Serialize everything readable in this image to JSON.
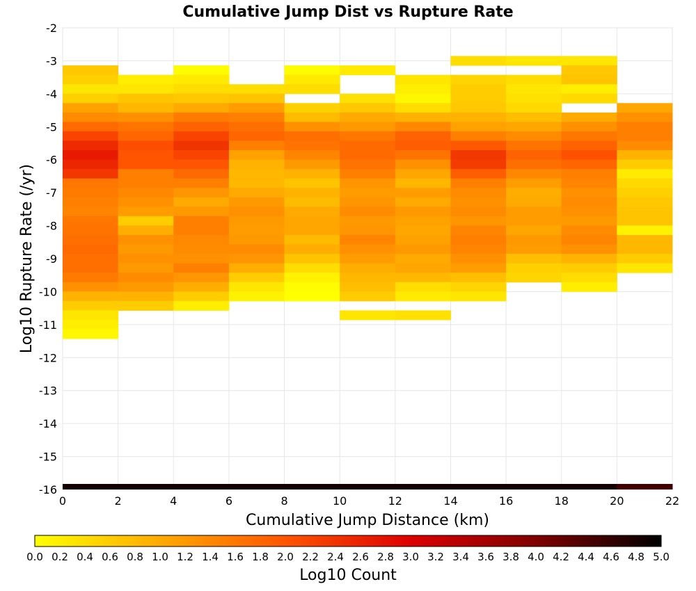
{
  "chart_data": {
    "type": "heatmap",
    "title": "Cumulative Jump Dist vs Rupture Rate",
    "xlabel": "Cumulative Jump Distance (km)",
    "ylabel": "Log10 Rupture Rate (/yr)",
    "xlim": [
      0,
      22
    ],
    "ylim": [
      -16,
      -2
    ],
    "x_ticks": [
      "0",
      "2",
      "4",
      "6",
      "8",
      "10",
      "12",
      "14",
      "16",
      "18",
      "20",
      "22"
    ],
    "y_ticks": [
      "-2",
      "-3",
      "-4",
      "-5",
      "-6",
      "-7",
      "-8",
      "-9",
      "-10",
      "-11",
      "-12",
      "-13",
      "-14",
      "-15",
      "-16"
    ],
    "x_bin_width": 2,
    "y_bin_height": 0.2857,
    "y_bin_edges_top": -3.14,
    "colorbar": {
      "label": "Log10 Count",
      "range": [
        0,
        5
      ],
      "ticks": [
        "0.0",
        "0.2",
        "0.4",
        "0.6",
        "0.8",
        "1.0",
        "1.2",
        "1.4",
        "1.6",
        "1.8",
        "2.0",
        "2.2",
        "2.4",
        "2.6",
        "2.8",
        "3.0",
        "3.2",
        "3.4",
        "3.6",
        "3.8",
        "4.0",
        "4.2",
        "4.4",
        "4.6",
        "4.8",
        "5.0"
      ],
      "colors": [
        "#ffff00",
        "#ffaa00",
        "#ff5500",
        "#dd0000",
        "#800000",
        "#000000"
      ]
    },
    "columns": [
      {
        "x": 0,
        "first_bin": 0,
        "values": [
          0.65,
          0.55,
          0.3,
          0.55,
          1.1,
          1.35,
          1.75,
          2.2,
          2.5,
          2.7,
          2.55,
          2.35,
          1.6,
          1.55,
          1.5,
          1.45,
          1.6,
          1.65,
          1.7,
          1.75,
          1.7,
          1.7,
          1.55,
          1.3,
          0.9,
          0.6,
          0.3,
          0.2,
          0.1
        ]
      },
      {
        "x": 2,
        "first_bin": 1,
        "values": [
          0.2,
          0.3,
          0.7,
          0.85,
          1.3,
          1.65,
          1.8,
          2.1,
          2.0,
          2.0,
          1.5,
          1.5,
          1.4,
          1.3,
          1.15,
          0.6,
          0.95,
          1.3,
          1.2,
          1.3,
          1.2,
          1.35,
          1.2,
          0.9,
          0.6
        ]
      },
      {
        "x": 4,
        "first_bin": 0,
        "values": [
          0.05,
          0.25,
          0.4,
          0.65,
          1.0,
          1.55,
          1.85,
          2.2,
          2.4,
          2.2,
          2.0,
          1.75,
          1.5,
          1.25,
          1.0,
          1.2,
          1.5,
          1.5,
          1.4,
          1.35,
          1.3,
          1.5,
          1.25,
          0.95,
          0.6,
          0.2
        ]
      },
      {
        "x": 6,
        "first_bin": 2,
        "values": [
          0.4,
          0.7,
          1.15,
          1.5,
          1.7,
          1.8,
          1.5,
          1.1,
          0.9,
          0.85,
          0.85,
          1.0,
          1.2,
          1.3,
          1.2,
          1.15,
          1.2,
          1.35,
          1.25,
          0.95,
          0.6,
          0.3,
          0.15
        ]
      },
      {
        "x": 8,
        "first_bin": 0,
        "values": [
          0.05,
          0.25,
          0.4,
          null,
          0.55,
          0.8,
          1.3,
          1.7,
          1.65,
          1.45,
          1.2,
          0.9,
          0.7,
          0.9,
          0.8,
          1.0,
          1.05,
          1.05,
          0.8,
          0.95,
          0.7,
          0.4,
          0.15,
          0.05,
          0.0
        ]
      },
      {
        "x": 10,
        "first_bin": 0,
        "values": [
          0.25,
          null,
          null,
          0.35,
          0.65,
          1.0,
          1.2,
          1.6,
          1.75,
          1.75,
          1.65,
          1.5,
          1.25,
          1.15,
          1.25,
          1.35,
          1.2,
          1.25,
          1.45,
          1.3,
          1.15,
          0.95,
          0.85,
          0.75,
          0.6,
          null,
          0.3
        ]
      },
      {
        "x": 12,
        "first_bin": 1,
        "values": [
          0.3,
          0.2,
          0.1,
          0.4,
          0.9,
          1.4,
          1.85,
          1.9,
          1.65,
          1.3,
          1.05,
          0.85,
          1.15,
          1.0,
          1.2,
          1.1,
          1.05,
          1.1,
          1.2,
          1.0,
          1.05,
          0.85,
          0.4,
          0.25,
          null,
          0.35
        ]
      },
      {
        "x": 14,
        "first_bin": -1,
        "values": [
          0.4,
          null,
          0.5,
          0.6,
          0.6,
          0.65,
          0.9,
          1.1,
          1.5,
          1.95,
          2.35,
          2.3,
          1.9,
          1.5,
          1.35,
          1.3,
          1.35,
          1.25,
          1.45,
          1.5,
          1.45,
          1.3,
          1.15,
          0.75,
          0.5,
          0.3
        ]
      },
      {
        "x": 16,
        "first_bin": -1,
        "values": [
          0.3,
          null,
          0.4,
          0.3,
          0.35,
          0.45,
          0.75,
          1.05,
          1.35,
          1.65,
          1.85,
          1.7,
          1.4,
          1.15,
          0.95,
          1.0,
          1.15,
          1.15,
          1.05,
          1.2,
          1.15,
          0.75,
          0.55,
          0.5
        ]
      },
      {
        "x": 18,
        "first_bin": -1,
        "values": [
          0.3,
          0.65,
          0.7,
          0.2,
          0.45,
          null,
          1.0,
          1.3,
          1.6,
          1.85,
          2.05,
          1.8,
          1.5,
          1.45,
          1.3,
          1.35,
          1.3,
          1.2,
          1.35,
          1.45,
          1.3,
          0.9,
          0.6,
          0.4,
          0.2
        ]
      },
      {
        "x": 20,
        "first_bin": 4,
        "values": [
          1.05,
          1.3,
          1.5,
          1.5,
          1.35,
          0.9,
          0.6,
          0.25,
          0.45,
          0.55,
          0.65,
          0.7,
          0.7,
          0.15,
          0.85,
          0.85,
          0.6,
          0.3
        ]
      }
    ],
    "bottom_row": {
      "y": -16,
      "value": 4.85,
      "edge_value": 4.5
    }
  }
}
